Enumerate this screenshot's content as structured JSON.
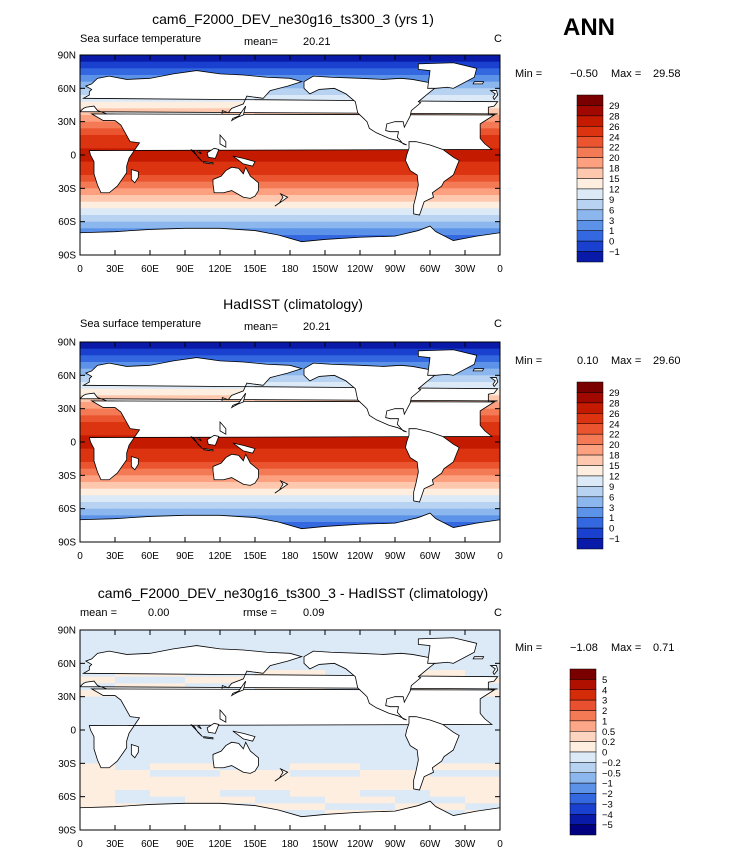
{
  "season": "ANN",
  "panels": [
    {
      "title": "cam6_F2000_DEV_ne30g16_ts300_3 (yrs 1)",
      "left_label": "Sea surface temperature",
      "mean_label": "mean=",
      "mean_value": "20.21",
      "rmse_label": "",
      "rmse_value": "",
      "units": "C",
      "min_label": "Min =",
      "min_value": "−0.50",
      "max_label": "Max =",
      "max_value": "29.58",
      "colorbar": {
        "labels": [
          "29",
          "28",
          "26",
          "24",
          "22",
          "20",
          "18",
          "15",
          "12",
          "9",
          "6",
          "3",
          "1",
          "0",
          "−1"
        ],
        "colors": [
          "#7a0000",
          "#a00800",
          "#c41a00",
          "#dc3410",
          "#ea5530",
          "#f47a55",
          "#fca080",
          "#fdc8ae",
          "#fdeee0",
          "#dce9f7",
          "#b8d3f2",
          "#8bb6ee",
          "#5c92e8",
          "#3468e0",
          "#1a40d0",
          "#0a1aa8"
        ]
      }
    },
    {
      "title": "HadISST (climatology)",
      "left_label": "Sea surface temperature",
      "mean_label": "mean=",
      "mean_value": "20.21",
      "rmse_label": "",
      "rmse_value": "",
      "units": "C",
      "min_label": "Min =",
      "min_value": "0.10",
      "max_label": "Max =",
      "max_value": "29.60",
      "colorbar": {
        "labels": [
          "29",
          "28",
          "26",
          "24",
          "22",
          "20",
          "18",
          "15",
          "12",
          "9",
          "6",
          "3",
          "1",
          "0",
          "−1"
        ],
        "colors": [
          "#7a0000",
          "#a00800",
          "#c41a00",
          "#dc3410",
          "#ea5530",
          "#f47a55",
          "#fca080",
          "#fdc8ae",
          "#fdeee0",
          "#dce9f7",
          "#b8d3f2",
          "#8bb6ee",
          "#5c92e8",
          "#3468e0",
          "#1a40d0",
          "#0a1aa8"
        ]
      }
    },
    {
      "title": "cam6_F2000_DEV_ne30g16_ts300_3 - HadISST (climatology)",
      "left_label": "",
      "mean_label": "mean =",
      "mean_value": "0.00",
      "rmse_label": "rmse =",
      "rmse_value": "0.09",
      "units": "C",
      "min_label": "Min =",
      "min_value": "−1.08",
      "max_label": "Max =",
      "max_value": "0.71",
      "colorbar": {
        "labels": [
          "5",
          "4",
          "3",
          "2",
          "1",
          "0.5",
          "0.2",
          "0",
          "−0.2",
          "−0.5",
          "−1",
          "−2",
          "−3",
          "−4",
          "−5"
        ],
        "colors": [
          "#7a0000",
          "#b01000",
          "#d42c08",
          "#e85030",
          "#f47a55",
          "#fca888",
          "#fdd4bf",
          "#fdeee0",
          "#dce9f7",
          "#b8d3f2",
          "#8bb6ee",
          "#5c92e8",
          "#3468e0",
          "#1a40d0",
          "#0a1aa8",
          "#000080"
        ]
      }
    }
  ],
  "chart_data": [
    {
      "type": "heatmap",
      "title": "cam6_F2000_DEV_ne30g16_ts300_3 (yrs 1)",
      "x_ticks": [
        "0",
        "30E",
        "60E",
        "90E",
        "120E",
        "150E",
        "180",
        "150W",
        "120W",
        "90W",
        "60W",
        "30W",
        "0"
      ],
      "y_ticks": [
        "90N",
        "60N",
        "30N",
        "0",
        "30S",
        "60S",
        "90S"
      ],
      "xlim": [
        0,
        360
      ],
      "ylim": [
        -90,
        90
      ],
      "min": -0.5,
      "max": 29.58,
      "mean": 20.21,
      "levels": [
        -1,
        0,
        1,
        3,
        6,
        9,
        12,
        15,
        18,
        20,
        22,
        24,
        26,
        28,
        29
      ]
    },
    {
      "type": "heatmap",
      "title": "HadISST (climatology)",
      "x_ticks": [
        "0",
        "30E",
        "60E",
        "90E",
        "120E",
        "150E",
        "180",
        "150W",
        "120W",
        "90W",
        "60W",
        "30W",
        "0"
      ],
      "y_ticks": [
        "90N",
        "60N",
        "30N",
        "0",
        "30S",
        "60S",
        "90S"
      ],
      "xlim": [
        0,
        360
      ],
      "ylim": [
        -90,
        90
      ],
      "min": 0.1,
      "max": 29.6,
      "mean": 20.21,
      "levels": [
        -1,
        0,
        1,
        3,
        6,
        9,
        12,
        15,
        18,
        20,
        22,
        24,
        26,
        28,
        29
      ]
    },
    {
      "type": "heatmap",
      "title": "cam6_F2000_DEV_ne30g16_ts300_3 - HadISST (climatology)",
      "x_ticks": [
        "0",
        "30E",
        "60E",
        "90E",
        "120E",
        "150E",
        "180",
        "150W",
        "120W",
        "90W",
        "60W",
        "30W",
        "0"
      ],
      "y_ticks": [
        "90N",
        "60N",
        "30N",
        "0",
        "30S",
        "60S",
        "90S"
      ],
      "xlim": [
        0,
        360
      ],
      "ylim": [
        -90,
        90
      ],
      "min": -1.08,
      "max": 0.71,
      "mean": 0.0,
      "rmse": 0.09,
      "levels": [
        -5,
        -4,
        -3,
        -2,
        -1,
        -0.5,
        -0.2,
        0,
        0.2,
        0.5,
        1,
        2,
        3,
        4,
        5
      ]
    }
  ]
}
